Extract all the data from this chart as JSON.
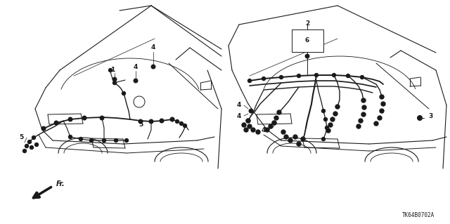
{
  "diagram_code": "TK64B0702A",
  "background_color": "#ffffff",
  "line_color": "#1a1a1a",
  "fig_width": 6.4,
  "fig_height": 3.19,
  "dpi": 100
}
